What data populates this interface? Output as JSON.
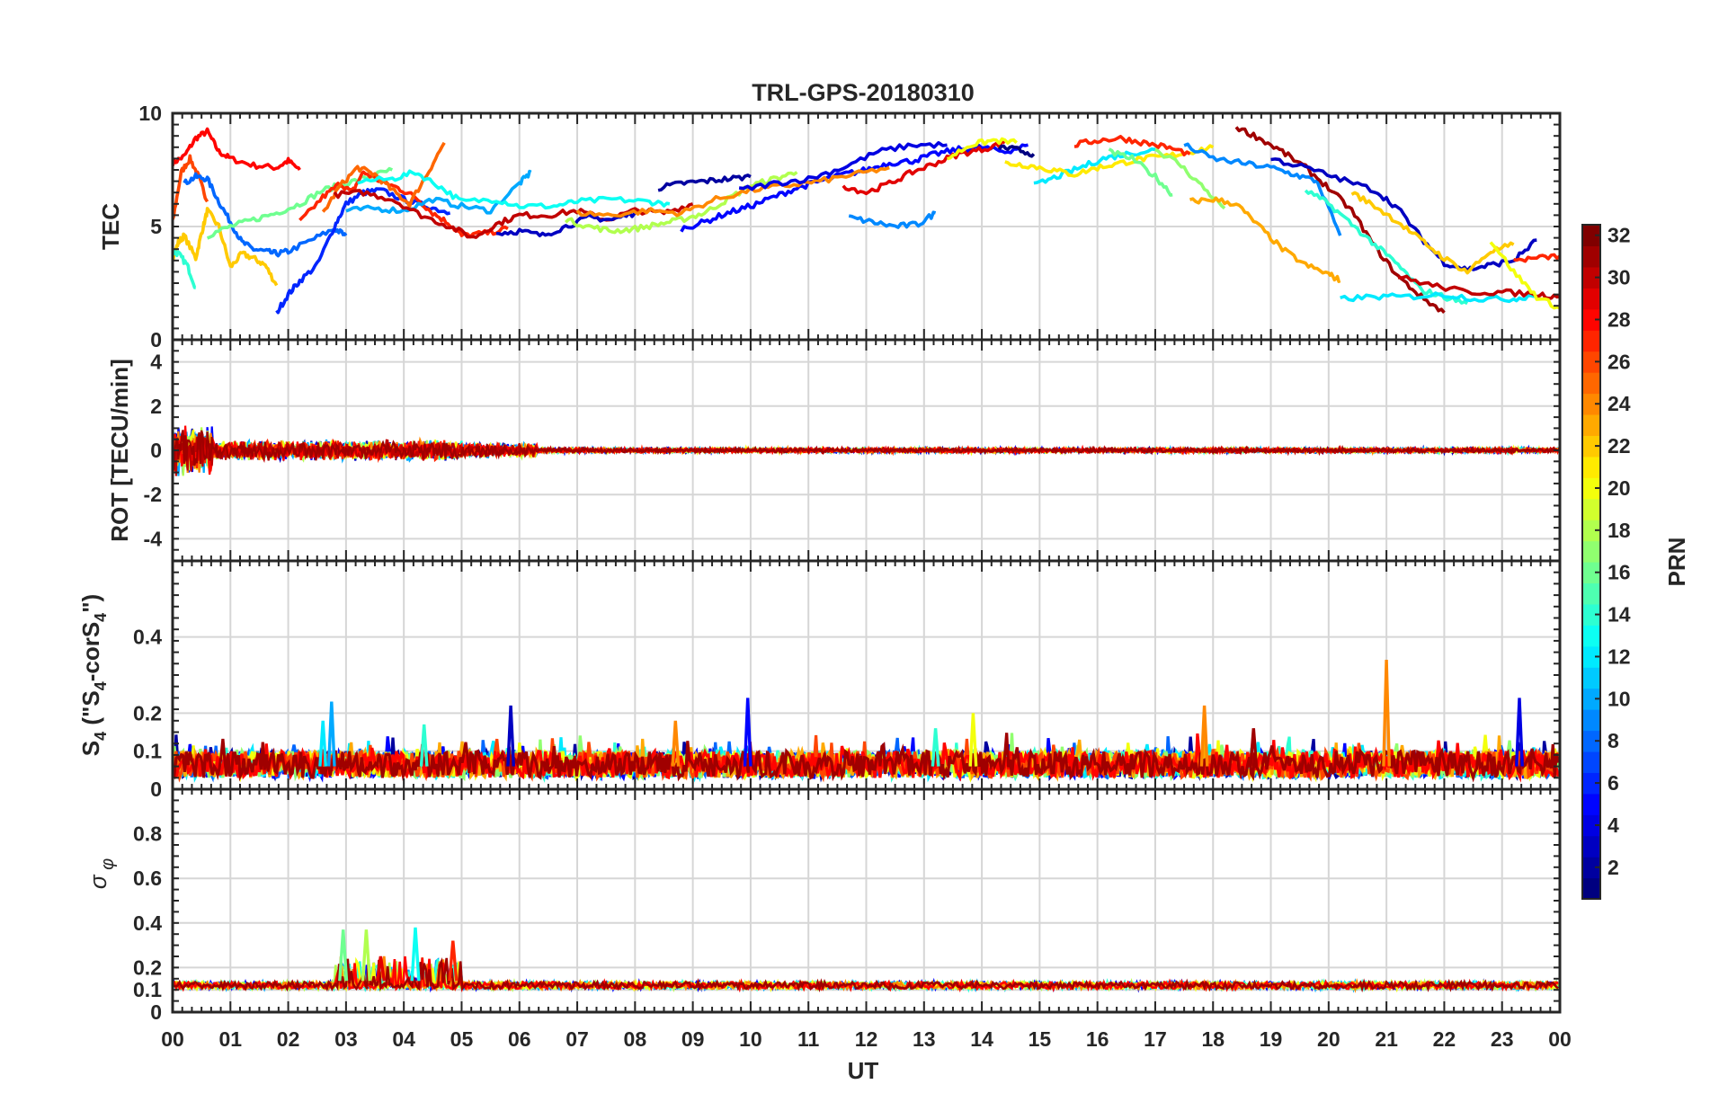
{
  "figure": {
    "title": "TRL-GPS-20180310",
    "xlabel": "UT",
    "x_ticks": [
      "00",
      "01",
      "02",
      "03",
      "04",
      "05",
      "06",
      "07",
      "08",
      "09",
      "10",
      "11",
      "12",
      "13",
      "14",
      "15",
      "16",
      "17",
      "18",
      "19",
      "20",
      "21",
      "22",
      "23",
      "00"
    ]
  },
  "colorbar": {
    "label": "PRN",
    "range": [
      1,
      32
    ],
    "ticks": [
      2,
      4,
      6,
      8,
      10,
      12,
      14,
      16,
      18,
      20,
      22,
      24,
      26,
      28,
      30,
      32
    ],
    "colormap": "jet",
    "colors": [
      "#00008f",
      "#0000ff",
      "#0080ff",
      "#00ffff",
      "#80ff80",
      "#ffff00",
      "#ff8000",
      "#ff0000",
      "#800000"
    ]
  },
  "chart_data": [
    {
      "type": "line",
      "panel": "TEC",
      "ylabel": "TEC",
      "xlim": [
        0,
        24
      ],
      "ylim": [
        0,
        10
      ],
      "y_ticks": [
        "0",
        "5",
        "10"
      ],
      "grid": true,
      "series": [
        {
          "prn": 28,
          "x": [
            0,
            0.2,
            0.4,
            0.6,
            0.8,
            1.0,
            1.4,
            1.8,
            2.0,
            2.2
          ],
          "y": [
            7.8,
            8.1,
            8.9,
            9.2,
            8.3,
            8.0,
            7.7,
            7.6,
            7.9,
            7.5
          ]
        },
        {
          "prn": 26,
          "x": [
            0,
            0.15,
            0.3,
            0.45,
            0.6
          ],
          "y": [
            5.2,
            7.4,
            8.0,
            7.2,
            6.1
          ]
        },
        {
          "prn": 22,
          "x": [
            0,
            0.1,
            0.2,
            0.4,
            0.5,
            0.6,
            0.8,
            1.0,
            1.2,
            1.4,
            1.6,
            1.8
          ],
          "y": [
            3.6,
            4.3,
            4.6,
            3.6,
            4.7,
            5.7,
            5.0,
            3.2,
            3.8,
            3.6,
            3.3,
            2.4
          ]
        },
        {
          "prn": 14,
          "x": [
            0,
            0.1,
            0.25,
            0.4
          ],
          "y": [
            3.9,
            3.8,
            3.3,
            2.3
          ]
        },
        {
          "prn": 8,
          "x": [
            0.2,
            0.4,
            0.6,
            0.8,
            1.0,
            1.2,
            1.4,
            1.6,
            1.8,
            2.0,
            2.4,
            2.8,
            3.0
          ],
          "y": [
            6.9,
            7.2,
            7.1,
            6.1,
            5.2,
            4.3,
            4.0,
            3.9,
            3.8,
            3.9,
            4.4,
            4.9,
            4.6
          ]
        },
        {
          "prn": 6,
          "x": [
            1.8,
            2.0,
            2.2,
            2.5,
            2.8,
            3.0,
            3.3,
            3.6,
            4.0,
            4.4,
            4.8
          ],
          "y": [
            1.2,
            2.0,
            2.6,
            3.3,
            5.0,
            6.0,
            6.5,
            6.6,
            6.2,
            5.9,
            5.6
          ]
        },
        {
          "prn": 16,
          "x": [
            0.6,
            1.0,
            1.4,
            1.8,
            2.2,
            2.6,
            3.0,
            3.4,
            3.8
          ],
          "y": [
            4.6,
            5.0,
            5.3,
            5.6,
            6.0,
            6.6,
            6.9,
            7.2,
            7.5
          ]
        },
        {
          "prn": 27,
          "x": [
            2.2,
            2.6,
            2.9,
            3.1,
            3.3,
            3.6,
            3.9,
            4.2,
            4.5,
            4.8,
            5.0,
            5.4,
            5.8
          ],
          "y": [
            5.2,
            6.3,
            6.9,
            6.5,
            7.4,
            7.0,
            6.7,
            6.3,
            5.6,
            5.1,
            4.6,
            4.7,
            4.9
          ]
        },
        {
          "prn": 25,
          "x": [
            2.6,
            2.9,
            3.2,
            3.5,
            3.8,
            4.1,
            4.4,
            4.7
          ],
          "y": [
            5.6,
            6.8,
            7.6,
            7.3,
            6.6,
            6.0,
            7.3,
            8.7
          ]
        },
        {
          "prn": 10,
          "x": [
            3.0,
            3.5,
            4.0,
            4.5,
            5.0,
            5.5,
            6.0,
            6.2
          ],
          "y": [
            5.7,
            5.8,
            5.7,
            6.2,
            5.9,
            5.7,
            6.9,
            7.4
          ]
        },
        {
          "prn": 13,
          "x": [
            3.2,
            3.8,
            4.2,
            4.6,
            5.0,
            5.6,
            6.0,
            6.6,
            7.0,
            7.6,
            8.2,
            8.6
          ],
          "y": [
            7.0,
            7.1,
            7.4,
            6.8,
            6.1,
            6.2,
            5.9,
            5.9,
            6.1,
            6.2,
            6.1,
            6.0
          ]
        },
        {
          "prn": 30,
          "x": [
            2.8,
            3.3,
            3.8,
            4.3,
            4.8,
            5.2,
            5.6,
            6.0,
            6.5,
            7.0,
            7.5,
            8.0,
            8.5,
            9.0
          ],
          "y": [
            6.4,
            6.5,
            6.2,
            5.5,
            5.0,
            4.5,
            5.1,
            5.5,
            5.5,
            5.7,
            5.3,
            5.7,
            5.6,
            6.0
          ]
        },
        {
          "prn": 3,
          "x": [
            5.6,
            6.0,
            6.4,
            6.8,
            7.2,
            7.6,
            8.0
          ],
          "y": [
            4.7,
            4.8,
            4.6,
            5.0,
            5.4,
            5.3,
            5.6
          ]
        },
        {
          "prn": 18,
          "x": [
            6.8,
            7.2,
            7.6,
            8.0,
            8.4,
            8.8,
            9.2,
            9.6,
            10.0,
            10.4,
            10.8
          ],
          "y": [
            5.3,
            5.0,
            4.8,
            4.9,
            5.1,
            5.3,
            5.6,
            6.2,
            6.8,
            7.1,
            7.4
          ]
        },
        {
          "prn": 2,
          "x": [
            8.4,
            8.8,
            9.2,
            9.6,
            10.0
          ],
          "y": [
            6.7,
            6.9,
            7.0,
            7.1,
            7.2
          ]
        },
        {
          "prn": 5,
          "x": [
            8.8,
            9.2,
            9.6,
            10.0,
            10.4,
            10.8,
            11.2,
            11.6,
            12.0,
            12.4,
            12.8,
            13.2,
            13.6,
            14.0,
            14.4,
            14.8
          ],
          "y": [
            4.9,
            5.2,
            5.6,
            5.9,
            6.3,
            6.7,
            7.0,
            7.3,
            7.5,
            7.8,
            7.9,
            8.2,
            8.4,
            8.5,
            8.3,
            8.6
          ]
        },
        {
          "prn": 24,
          "x": [
            7.0,
            7.6,
            8.2,
            8.8,
            9.4,
            10.0,
            10.6,
            11.2,
            11.8,
            12.4
          ],
          "y": [
            5.6,
            5.5,
            5.7,
            5.6,
            6.2,
            6.6,
            6.8,
            7.0,
            7.3,
            7.6
          ]
        },
        {
          "prn": 4,
          "x": [
            9.8,
            10.4,
            11.0,
            11.6,
            12.2,
            12.8,
            13.4
          ],
          "y": [
            6.6,
            6.9,
            7.1,
            7.6,
            8.3,
            8.6,
            8.6
          ]
        },
        {
          "prn": 9,
          "x": [
            11.7,
            12.1,
            12.5,
            12.9,
            13.2
          ],
          "y": [
            5.4,
            5.2,
            5.0,
            5.1,
            5.6
          ]
        },
        {
          "prn": 29,
          "x": [
            11.6,
            12.0,
            12.4,
            12.8,
            13.2,
            13.6,
            14.0,
            14.4
          ],
          "y": [
            6.8,
            6.5,
            6.9,
            7.4,
            7.8,
            8.2,
            8.4,
            8.7
          ]
        },
        {
          "prn": 20,
          "x": [
            13.4,
            13.8,
            14.2,
            14.6
          ],
          "y": [
            8.0,
            8.6,
            8.8,
            8.7
          ]
        },
        {
          "prn": 1,
          "x": [
            14.3,
            14.6,
            14.9
          ],
          "y": [
            8.5,
            8.4,
            8.2
          ]
        },
        {
          "prn": 12,
          "x": [
            14.9,
            15.3,
            15.7,
            16.1,
            16.5,
            17.0
          ],
          "y": [
            6.8,
            7.2,
            7.6,
            8.0,
            8.2,
            8.4
          ]
        },
        {
          "prn": 21,
          "x": [
            14.4,
            14.8,
            15.2,
            15.6,
            16.0,
            16.4,
            16.8,
            17.2,
            17.6,
            18.0
          ],
          "y": [
            7.8,
            7.7,
            7.5,
            7.3,
            7.6,
            7.8,
            8.0,
            8.1,
            8.3,
            8.5
          ]
        },
        {
          "prn": 27,
          "x": [
            15.6,
            16.0,
            16.4,
            16.8,
            17.2,
            17.6
          ],
          "y": [
            8.6,
            8.8,
            8.9,
            8.7,
            8.5,
            8.2
          ]
        },
        {
          "prn": 16,
          "x": [
            16.2,
            16.6,
            17.0,
            17.3
          ],
          "y": [
            8.3,
            8.0,
            7.2,
            6.4
          ]
        },
        {
          "prn": 17,
          "x": [
            17.0,
            17.4,
            17.8,
            18.2
          ],
          "y": [
            8.4,
            7.8,
            6.8,
            5.8
          ]
        },
        {
          "prn": 9,
          "x": [
            17.5,
            18.0,
            18.5,
            19.0,
            19.4,
            19.8,
            20.2
          ],
          "y": [
            8.6,
            8.0,
            7.8,
            7.6,
            7.3,
            7.0,
            4.6
          ]
        },
        {
          "prn": 23,
          "x": [
            17.6,
            18.0,
            18.4,
            18.8,
            19.2,
            19.6,
            20.0,
            20.2
          ],
          "y": [
            6.1,
            6.2,
            6.0,
            5.0,
            4.0,
            3.3,
            2.9,
            2.6
          ]
        },
        {
          "prn": 31,
          "x": [
            18.4,
            18.8,
            19.2,
            19.6,
            20.0,
            20.4,
            20.8,
            21.2,
            21.6,
            22.0
          ],
          "y": [
            9.4,
            8.9,
            8.3,
            7.6,
            6.7,
            5.7,
            4.1,
            2.8,
            1.9,
            1.2
          ]
        },
        {
          "prn": 3,
          "x": [
            19.0,
            19.6,
            20.2,
            20.8,
            21.2,
            21.6,
            22.0,
            22.4,
            22.8,
            23.2,
            23.6
          ],
          "y": [
            8.0,
            7.6,
            7.1,
            6.6,
            5.8,
            4.5,
            3.4,
            3.1,
            3.3,
            3.5,
            4.4
          ]
        },
        {
          "prn": 14,
          "x": [
            19.6,
            20.0,
            20.4,
            20.8,
            21.2,
            21.6,
            22.0,
            22.4
          ],
          "y": [
            6.6,
            6.0,
            5.1,
            4.2,
            3.3,
            2.2,
            1.9,
            1.6
          ]
        },
        {
          "prn": 22,
          "x": [
            20.4,
            20.8,
            21.2,
            21.6,
            22.0,
            22.4,
            22.8,
            23.2
          ],
          "y": [
            6.5,
            5.9,
            5.2,
            4.4,
            3.6,
            3.0,
            3.9,
            4.2
          ]
        },
        {
          "prn": 12,
          "x": [
            20.2,
            20.8,
            21.4,
            22.0,
            22.6,
            23.2,
            23.6
          ],
          "y": [
            1.8,
            1.9,
            1.9,
            2.0,
            1.8,
            1.8,
            2.0
          ]
        },
        {
          "prn": 30,
          "x": [
            21.2,
            21.8,
            22.4,
            23.0,
            23.6,
            24.0
          ],
          "y": [
            2.8,
            2.4,
            2.1,
            2.1,
            2.0,
            1.9
          ]
        },
        {
          "prn": 20,
          "x": [
            22.8,
            23.2,
            23.6,
            24.0
          ],
          "y": [
            4.4,
            3.0,
            1.9,
            1.4
          ]
        },
        {
          "prn": 27,
          "x": [
            23.2,
            23.6,
            24.0
          ],
          "y": [
            3.5,
            3.6,
            3.7
          ]
        }
      ]
    },
    {
      "type": "line",
      "panel": "ROT",
      "ylabel": "ROT [TECU/min]",
      "xlim": [
        0,
        24
      ],
      "ylim": [
        -5,
        5
      ],
      "y_ticks": [
        "-4",
        "-2",
        "0",
        "2",
        "4"
      ],
      "grid": true,
      "note_levels": [
        {
          "x0": 0.0,
          "x1": 0.7,
          "amp": 1.2
        },
        {
          "x0": 0.7,
          "x1": 5.0,
          "amp": 0.5
        },
        {
          "x0": 5.0,
          "x1": 6.3,
          "amp": 0.35
        },
        {
          "x0": 6.3,
          "x1": 24.0,
          "amp": 0.12
        }
      ]
    },
    {
      "type": "line",
      "panel": "S4",
      "ylabel": "S4 (\"S4-corS4\")",
      "xlim": [
        0,
        24
      ],
      "ylim": [
        0,
        0.6
      ],
      "y_ticks": [
        "0",
        "0.1",
        "0.2",
        "0.4"
      ],
      "grid": true,
      "spikes": [
        {
          "x": 2.6,
          "y": 0.18,
          "prn": 12
        },
        {
          "x": 2.75,
          "y": 0.23,
          "prn": 10
        },
        {
          "x": 4.35,
          "y": 0.17,
          "prn": 14
        },
        {
          "x": 5.85,
          "y": 0.22,
          "prn": 3
        },
        {
          "x": 8.7,
          "y": 0.18,
          "prn": 24
        },
        {
          "x": 9.95,
          "y": 0.24,
          "prn": 5
        },
        {
          "x": 13.2,
          "y": 0.16,
          "prn": 14
        },
        {
          "x": 13.85,
          "y": 0.2,
          "prn": 20
        },
        {
          "x": 17.85,
          "y": 0.22,
          "prn": 24
        },
        {
          "x": 18.7,
          "y": 0.16,
          "prn": 31
        },
        {
          "x": 21.0,
          "y": 0.34,
          "prn": 24
        },
        {
          "x": 23.3,
          "y": 0.24,
          "prn": 4
        }
      ]
    },
    {
      "type": "line",
      "panel": "sigma_phi",
      "ylabel": "σφ",
      "xlim": [
        0,
        24
      ],
      "ylim": [
        0,
        1
      ],
      "y_ticks": [
        "0",
        "0.1",
        "0.2",
        "0.4",
        "0.6",
        "0.8"
      ],
      "grid": true,
      "baseline": 0.12,
      "spikes": [
        {
          "x": 2.95,
          "y": 0.37,
          "prn": 16
        },
        {
          "x": 3.35,
          "y": 0.37,
          "prn": 18
        },
        {
          "x": 4.2,
          "y": 0.38,
          "prn": 13
        },
        {
          "x": 4.85,
          "y": 0.32,
          "prn": 27
        },
        {
          "x": 3.6,
          "y": 0.25,
          "prn": 29
        }
      ]
    }
  ]
}
